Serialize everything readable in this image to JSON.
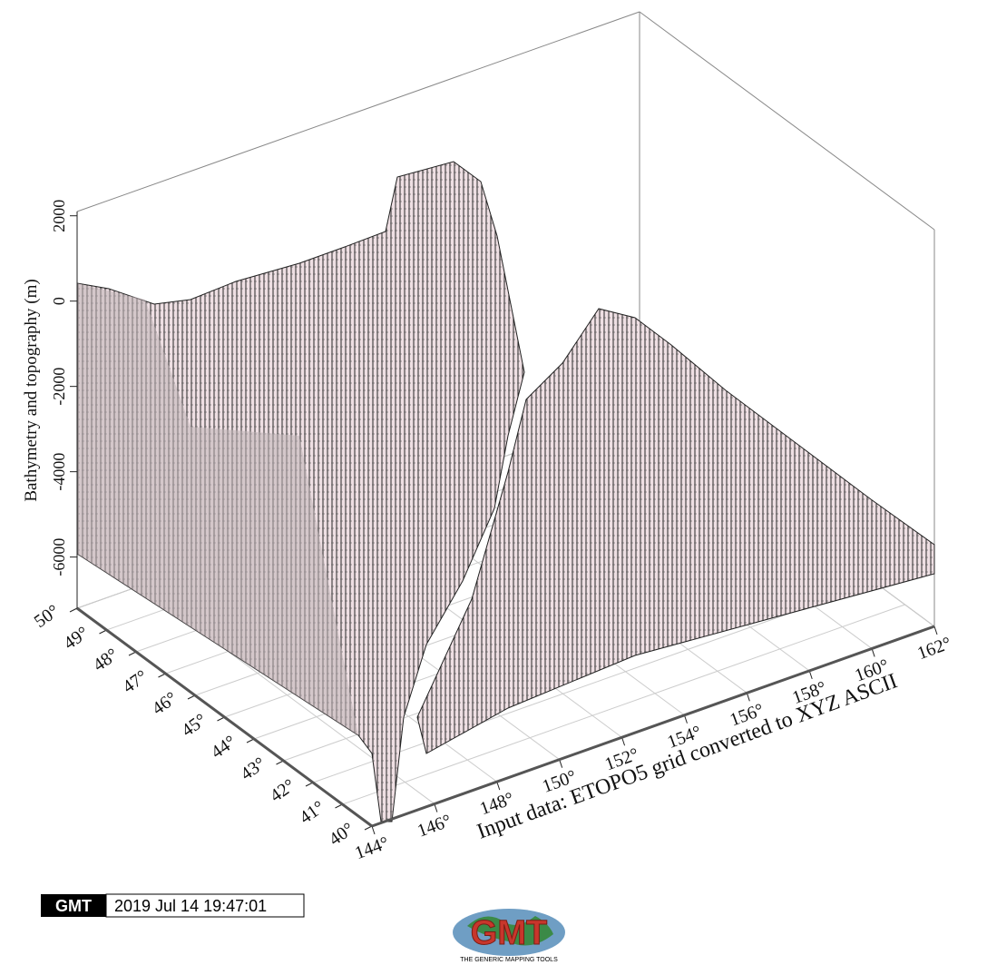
{
  "chart_data": {
    "type": "bar3d",
    "zlabel": "Bathymetry and topography (m)",
    "zlim": [
      -7200,
      2100
    ],
    "zticks": [
      -6000,
      -4000,
      -2000,
      0,
      2000
    ],
    "xlabel": "Input data: ETOPO5 grid converted to XYZ ASCII",
    "xlim": [
      144,
      162
    ],
    "xticks": [
      {
        "value": 144,
        "label": "144°"
      },
      {
        "value": 146,
        "label": "146°"
      },
      {
        "value": 148,
        "label": "148°"
      },
      {
        "value": 150,
        "label": "150°"
      },
      {
        "value": 152,
        "label": "152°"
      },
      {
        "value": 154,
        "label": "154°"
      },
      {
        "value": 156,
        "label": "156°"
      },
      {
        "value": 158,
        "label": "158°"
      },
      {
        "value": 160,
        "label": "160°"
      },
      {
        "value": 162,
        "label": "162°"
      }
    ],
    "ylim": [
      40,
      50
    ],
    "yticks": [
      {
        "value": 40,
        "label": "40°"
      },
      {
        "value": 41,
        "label": "41°"
      },
      {
        "value": 42,
        "label": "42°"
      },
      {
        "value": 43,
        "label": "43°"
      },
      {
        "value": 44,
        "label": "44°"
      },
      {
        "value": 45,
        "label": "45°"
      },
      {
        "value": 46,
        "label": "46°"
      },
      {
        "value": 47,
        "label": "47°"
      },
      {
        "value": 48,
        "label": "48°"
      },
      {
        "value": 49,
        "label": "49°"
      },
      {
        "value": 50,
        "label": "50°"
      }
    ],
    "grid": true,
    "bar_color": "#eedfe3"
  },
  "timestamp": {
    "logo": "GMT",
    "text": "2019 Jul 14 19:47:01"
  },
  "logo": {
    "text": "GMT",
    "caption": "THE GENERIC MAPPING TOOLS"
  }
}
